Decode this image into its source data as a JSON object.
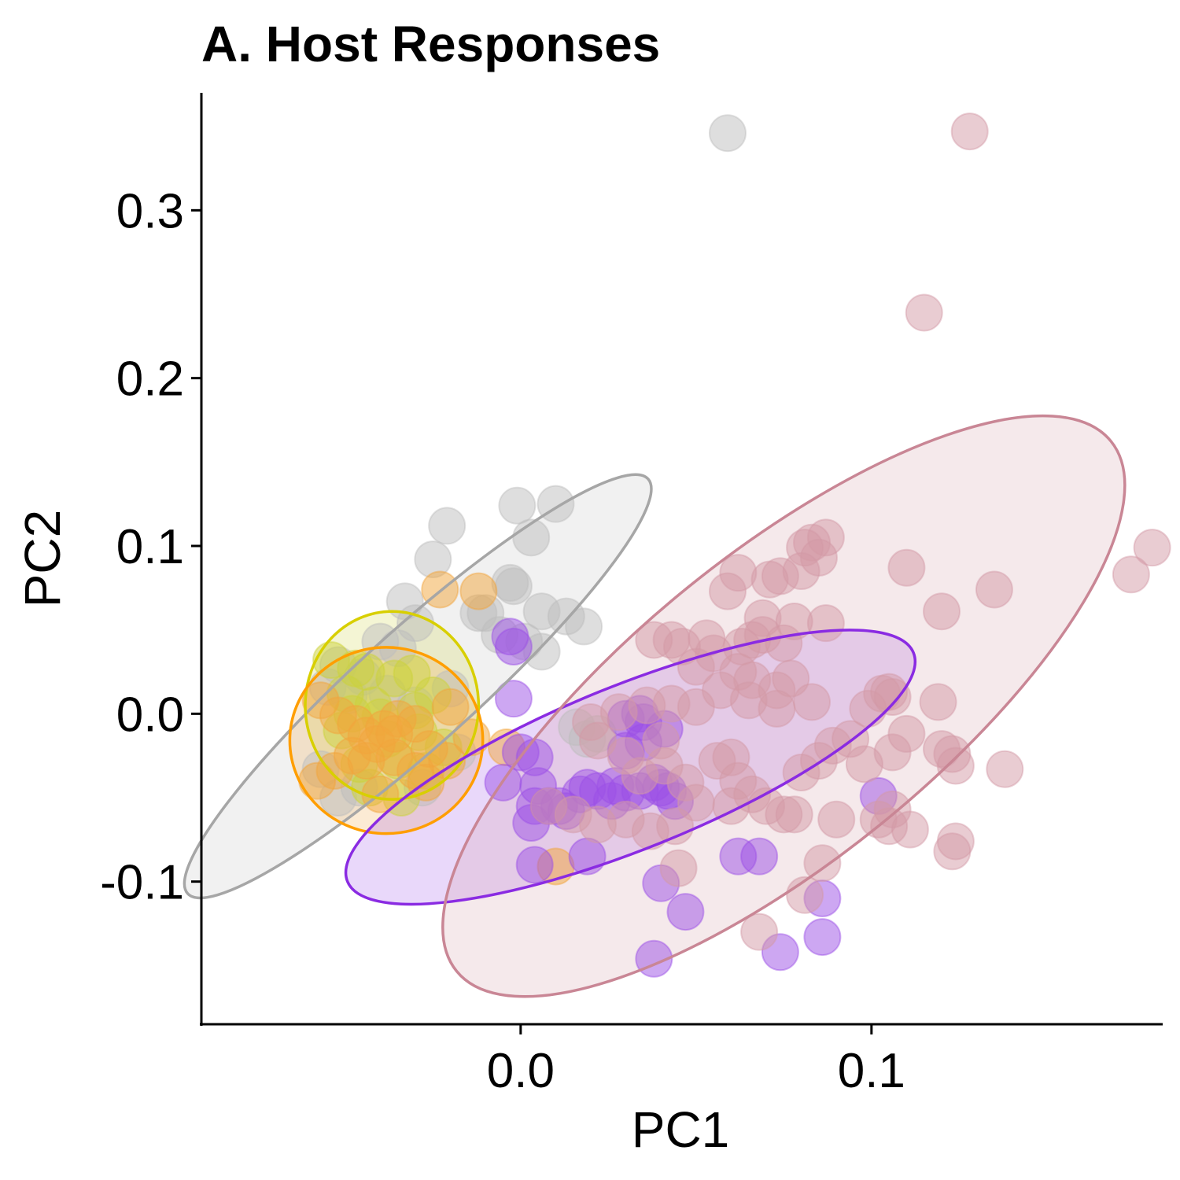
{
  "chart_data": {
    "type": "scatter",
    "title": "A. Host Responses",
    "xlabel": "PC1",
    "ylabel": "PC2",
    "xlim": [
      -0.091,
      0.183
    ],
    "ylim": [
      -0.185,
      0.37
    ],
    "xticks": [
      0.0,
      0.1
    ],
    "xtick_labels": [
      "0.0",
      "0.1"
    ],
    "yticks": [
      -0.1,
      0.0,
      0.1,
      0.2,
      0.3
    ],
    "ytick_labels": [
      "-0.1",
      "0.0",
      "0.1",
      "0.2",
      "0.3"
    ],
    "grid": false,
    "series": [
      {
        "color": "#a6a6a6",
        "fill": "#bdbdbd",
        "ellipse": {
          "cx": -0.0293,
          "cy": 0.0164,
          "rx": 0.0883,
          "ry": 0.0344,
          "angle": 42
        },
        "points": [
          [
            0.059,
            0.346
          ],
          [
            -0.021,
            0.112
          ],
          [
            -0.001,
            0.124
          ],
          [
            0.01,
            0.125
          ],
          [
            0.003,
            0.105
          ],
          [
            -0.025,
            0.092
          ],
          [
            -0.003,
            0.078
          ],
          [
            -0.002,
            0.076
          ],
          [
            -0.012,
            0.06
          ],
          [
            -0.033,
            0.067
          ],
          [
            0.006,
            0.061
          ],
          [
            0.013,
            0.058
          ],
          [
            0.018,
            0.052
          ],
          [
            -0.03,
            0.054
          ],
          [
            -0.006,
            0.047
          ],
          [
            0.001,
            0.043
          ],
          [
            0.006,
            0.037
          ],
          [
            -0.04,
            0.043
          ],
          [
            -0.035,
            0.039
          ],
          [
            -0.052,
            0.029
          ],
          [
            -0.045,
            0.022
          ],
          [
            -0.038,
            0.012
          ],
          [
            -0.03,
            0.005
          ],
          [
            -0.049,
            0.011
          ],
          [
            -0.055,
            0.016
          ],
          [
            -0.057,
            -0.033
          ],
          [
            -0.052,
            -0.05
          ],
          [
            -0.046,
            -0.044
          ],
          [
            -0.028,
            -0.044
          ],
          [
            -0.018,
            -0.023
          ],
          [
            0.016,
            -0.008
          ],
          [
            0.019,
            -0.015
          ],
          [
            0.022,
            -0.012
          ],
          [
            -0.01,
            0.06
          ],
          [
            -0.02,
            0.015
          ]
        ]
      },
      {
        "color": "#d8cf00",
        "fill": "#cbd23a",
        "ellipse": {
          "cx": -0.0367,
          "cy": 0.005,
          "rx": 0.0247,
          "ry": 0.056,
          "angle": 0
        },
        "points": [
          [
            -0.054,
            0.032
          ],
          [
            -0.047,
            0.027
          ],
          [
            -0.044,
            0.025
          ],
          [
            -0.05,
            0.012
          ],
          [
            -0.042,
            0.005
          ],
          [
            -0.036,
            0.021
          ],
          [
            -0.031,
            0.024
          ],
          [
            -0.025,
            0.011
          ],
          [
            -0.029,
            -0.011
          ],
          [
            -0.035,
            -0.028
          ],
          [
            -0.046,
            -0.03
          ],
          [
            -0.051,
            -0.01
          ],
          [
            -0.043,
            -0.044
          ],
          [
            -0.034,
            -0.05
          ],
          [
            -0.027,
            -0.034
          ],
          [
            -0.038,
            -0.015
          ],
          [
            -0.048,
            0.0
          ],
          [
            -0.03,
            0.002
          ],
          [
            -0.04,
            -0.002
          ],
          [
            -0.022,
            -0.02
          ]
        ]
      },
      {
        "color": "#ff9e00",
        "fill": "#f2a53c",
        "ellipse": {
          "cx": -0.0383,
          "cy": -0.0159,
          "rx": 0.0275,
          "ry": 0.0555,
          "angle": 0
        },
        "points": [
          [
            -0.012,
            0.073
          ],
          [
            -0.023,
            0.074
          ],
          [
            -0.057,
            0.008
          ],
          [
            -0.052,
            -0.001
          ],
          [
            -0.047,
            -0.006
          ],
          [
            -0.044,
            -0.013
          ],
          [
            -0.039,
            -0.009
          ],
          [
            -0.035,
            -0.003
          ],
          [
            -0.03,
            -0.006
          ],
          [
            -0.026,
            -0.021
          ],
          [
            -0.021,
            -0.028
          ],
          [
            -0.036,
            -0.026
          ],
          [
            -0.041,
            -0.018
          ],
          [
            -0.048,
            -0.025
          ],
          [
            -0.053,
            -0.034
          ],
          [
            -0.058,
            -0.04
          ],
          [
            -0.04,
            -0.048
          ],
          [
            -0.027,
            -0.041
          ],
          [
            -0.014,
            -0.014
          ],
          [
            -0.004,
            -0.02
          ],
          [
            0.01,
            -0.091
          ],
          [
            -0.03,
            -0.034
          ],
          [
            -0.044,
            -0.028
          ],
          [
            -0.036,
            -0.012
          ],
          [
            -0.02,
            0.004
          ]
        ]
      },
      {
        "color": "#8a2be2",
        "fill": "#9b4fe6",
        "ellipse": {
          "cx": 0.0313,
          "cy": -0.0318,
          "rx": 0.087,
          "ry": 0.0486,
          "angle": 22
        },
        "points": [
          [
            -0.003,
            0.046
          ],
          [
            -0.002,
            0.04
          ],
          [
            -0.002,
            0.009
          ],
          [
            0.0,
            -0.023
          ],
          [
            0.004,
            -0.026
          ],
          [
            -0.005,
            -0.041
          ],
          [
            0.005,
            -0.043
          ],
          [
            0.008,
            -0.055
          ],
          [
            0.004,
            -0.055
          ],
          [
            0.003,
            -0.065
          ],
          [
            0.011,
            -0.055
          ],
          [
            0.013,
            -0.058
          ],
          [
            0.017,
            -0.048
          ],
          [
            0.019,
            -0.044
          ],
          [
            0.022,
            -0.046
          ],
          [
            0.026,
            -0.052
          ],
          [
            0.027,
            -0.043
          ],
          [
            0.03,
            -0.047
          ],
          [
            0.034,
            -0.046
          ],
          [
            0.038,
            -0.041
          ],
          [
            0.04,
            -0.044
          ],
          [
            0.042,
            -0.046
          ],
          [
            0.03,
            -0.003
          ],
          [
            0.035,
            -0.005
          ],
          [
            0.041,
            -0.009
          ],
          [
            0.034,
            0.0
          ],
          [
            0.019,
            -0.085
          ],
          [
            0.004,
            -0.09
          ],
          [
            0.04,
            -0.101
          ],
          [
            0.047,
            -0.118
          ],
          [
            0.038,
            -0.146
          ],
          [
            0.062,
            -0.085
          ],
          [
            0.068,
            -0.085
          ],
          [
            0.074,
            -0.142
          ],
          [
            0.086,
            -0.11
          ],
          [
            0.086,
            -0.133
          ],
          [
            0.102,
            -0.049
          ],
          [
            0.03,
            -0.022
          ],
          [
            0.044,
            -0.052
          ],
          [
            0.035,
            -0.017
          ]
        ]
      },
      {
        "color": "#c98695",
        "fill": "#d39aa6",
        "ellipse": {
          "cx": 0.075,
          "cy": 0.0045,
          "rx": 0.12,
          "ry": 0.091,
          "angle": 39
        },
        "points": [
          [
            0.128,
            0.347
          ],
          [
            0.115,
            0.239
          ],
          [
            0.18,
            0.099
          ],
          [
            0.174,
            0.083
          ],
          [
            0.135,
            0.074
          ],
          [
            0.11,
            0.087
          ],
          [
            0.12,
            0.061
          ],
          [
            0.087,
            0.105
          ],
          [
            0.083,
            0.102
          ],
          [
            0.081,
            0.099
          ],
          [
            0.085,
            0.093
          ],
          [
            0.08,
            0.085
          ],
          [
            0.074,
            0.082
          ],
          [
            0.071,
            0.08
          ],
          [
            0.062,
            0.084
          ],
          [
            0.059,
            0.073
          ],
          [
            0.069,
            0.057
          ],
          [
            0.078,
            0.055
          ],
          [
            0.087,
            0.054
          ],
          [
            0.069,
            0.047
          ],
          [
            0.075,
            0.042
          ],
          [
            0.066,
            0.044
          ],
          [
            0.063,
            0.04
          ],
          [
            0.055,
            0.036
          ],
          [
            0.05,
            0.028
          ],
          [
            0.046,
            0.04
          ],
          [
            0.038,
            0.044
          ],
          [
            0.043,
            0.044
          ],
          [
            0.053,
            0.045
          ],
          [
            0.062,
            0.025
          ],
          [
            0.066,
            0.02
          ],
          [
            0.073,
            0.014
          ],
          [
            0.077,
            0.021
          ],
          [
            0.083,
            0.007
          ],
          [
            0.073,
            0.003
          ],
          [
            0.065,
            0.008
          ],
          [
            0.057,
            0.014
          ],
          [
            0.05,
            0.004
          ],
          [
            0.043,
            0.006
          ],
          [
            0.036,
            0.005
          ],
          [
            0.028,
            0.001
          ],
          [
            0.02,
            -0.005
          ],
          [
            0.022,
            -0.016
          ],
          [
            0.03,
            -0.025
          ],
          [
            0.034,
            -0.037
          ],
          [
            0.041,
            -0.031
          ],
          [
            0.047,
            -0.041
          ],
          [
            0.056,
            -0.028
          ],
          [
            0.062,
            -0.04
          ],
          [
            0.066,
            -0.048
          ],
          [
            0.07,
            -0.055
          ],
          [
            0.075,
            -0.06
          ],
          [
            0.08,
            -0.035
          ],
          [
            0.085,
            -0.028
          ],
          [
            0.089,
            -0.019
          ],
          [
            0.094,
            -0.015
          ],
          [
            0.099,
            0.003
          ],
          [
            0.103,
            0.012
          ],
          [
            0.105,
            0.013
          ],
          [
            0.106,
            0.01
          ],
          [
            0.098,
            -0.03
          ],
          [
            0.106,
            -0.023
          ],
          [
            0.11,
            -0.012
          ],
          [
            0.12,
            -0.021
          ],
          [
            0.123,
            -0.024
          ],
          [
            0.119,
            0.007
          ],
          [
            0.138,
            -0.033
          ],
          [
            0.124,
            -0.031
          ],
          [
            0.102,
            -0.063
          ],
          [
            0.105,
            -0.067
          ],
          [
            0.106,
            -0.057
          ],
          [
            0.111,
            -0.069
          ],
          [
            0.124,
            -0.076
          ],
          [
            0.123,
            -0.082
          ],
          [
            0.09,
            -0.063
          ],
          [
            0.086,
            -0.089
          ],
          [
            0.078,
            -0.06
          ],
          [
            0.06,
            -0.055
          ],
          [
            0.05,
            -0.053
          ],
          [
            0.044,
            -0.067
          ],
          [
            0.037,
            -0.07
          ],
          [
            0.03,
            -0.063
          ],
          [
            0.022,
            -0.066
          ],
          [
            0.015,
            -0.06
          ],
          [
            0.008,
            -0.055
          ],
          [
            0.045,
            -0.092
          ],
          [
            0.068,
            -0.13
          ],
          [
            0.081,
            -0.108
          ],
          [
            0.06,
            -0.026
          ],
          [
            0.04,
            -0.016
          ]
        ]
      }
    ]
  }
}
